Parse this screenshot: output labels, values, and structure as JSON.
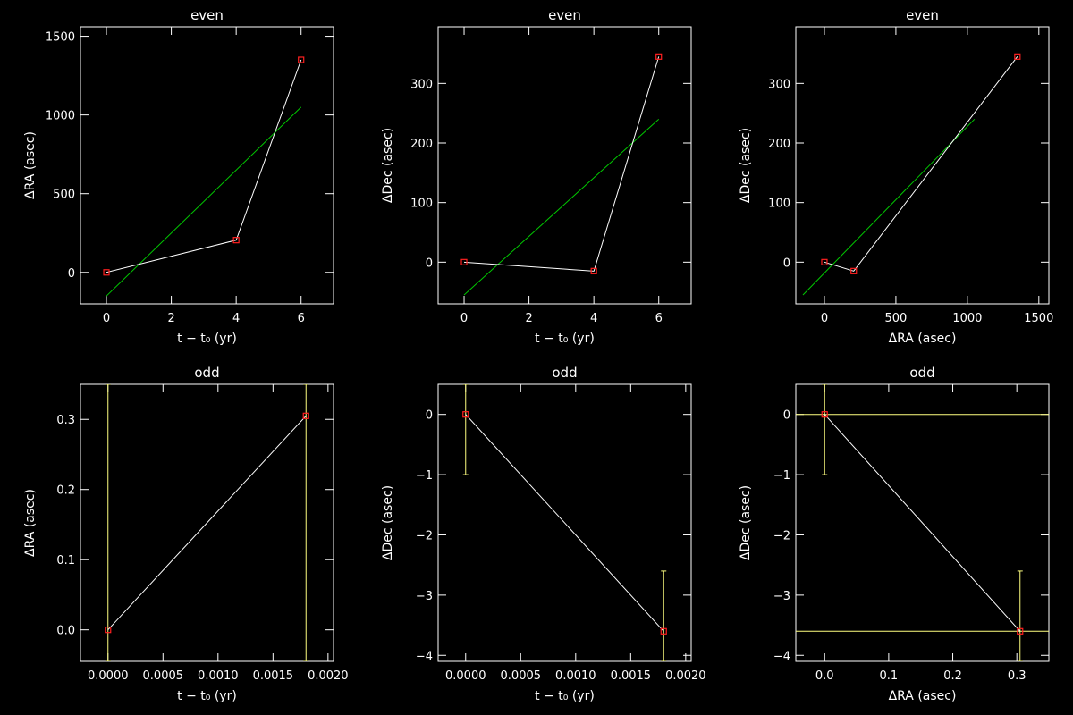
{
  "chart_data": [
    {
      "type": "line",
      "title": "even",
      "xlabel": "t − t₀ (yr)",
      "ylabel": "ΔRA (asec)",
      "xlim": [
        -0.8,
        7
      ],
      "ylim": [
        -200,
        1560
      ],
      "xticks": [
        0,
        2,
        4,
        6
      ],
      "xtick_labels": [
        "0",
        "2",
        "4",
        "6"
      ],
      "yticks": [
        0,
        500,
        1000,
        1500
      ],
      "ytick_labels": [
        "0",
        "500",
        "1000",
        "1500"
      ],
      "points": [
        [
          0,
          0
        ],
        [
          4,
          205
        ],
        [
          6,
          1350
        ]
      ],
      "fit": [
        [
          0,
          -150
        ],
        [
          6,
          1050
        ]
      ]
    },
    {
      "type": "line",
      "title": "even",
      "xlabel": "t − t₀ (yr)",
      "ylabel": "ΔDec (asec)",
      "xlim": [
        -0.8,
        7
      ],
      "ylim": [
        -70,
        395
      ],
      "xticks": [
        0,
        2,
        4,
        6
      ],
      "xtick_labels": [
        "0",
        "2",
        "4",
        "6"
      ],
      "yticks": [
        0,
        100,
        200,
        300
      ],
      "ytick_labels": [
        "0",
        "100",
        "200",
        "300"
      ],
      "points": [
        [
          0,
          0
        ],
        [
          4,
          -15
        ],
        [
          6,
          345
        ]
      ],
      "fit": [
        [
          0,
          -55
        ],
        [
          6,
          240
        ]
      ]
    },
    {
      "type": "line",
      "title": "even",
      "xlabel": "ΔRA (asec)",
      "ylabel": "ΔDec (asec)",
      "xlim": [
        -200,
        1570
      ],
      "ylim": [
        -70,
        395
      ],
      "xticks": [
        0,
        500,
        1000,
        1500
      ],
      "xtick_labels": [
        "0",
        "500",
        "1000",
        "1500"
      ],
      "yticks": [
        0,
        100,
        200,
        300
      ],
      "ytick_labels": [
        "0",
        "100",
        "200",
        "300"
      ],
      "points": [
        [
          0,
          0
        ],
        [
          205,
          -15
        ],
        [
          1350,
          345
        ]
      ],
      "fit": [
        [
          -150,
          -55
        ],
        [
          1050,
          240
        ]
      ]
    },
    {
      "type": "line",
      "title": "odd",
      "xlabel": "t − t₀ (yr)",
      "ylabel": "ΔRA (asec)",
      "xlim": [
        -0.00025,
        0.00205
      ],
      "ylim": [
        -0.045,
        0.35
      ],
      "xticks": [
        0,
        0.0005,
        0.001,
        0.0015,
        0.002
      ],
      "xtick_labels": [
        "0.0000",
        "0.0005",
        "0.0010",
        "0.0015",
        "0.0020"
      ],
      "yticks": [
        0,
        0.1,
        0.2,
        0.3
      ],
      "ytick_labels": [
        "0.0",
        "0.1",
        "0.2",
        "0.3"
      ],
      "points": [
        [
          0,
          0
        ],
        [
          0.0018,
          0.305
        ]
      ],
      "yerr": [
        {
          "x": 0,
          "lo": -0.045,
          "hi": 0.35
        },
        {
          "x": 0.0018,
          "lo": -0.045,
          "hi": 0.35
        }
      ]
    },
    {
      "type": "line",
      "title": "odd",
      "xlabel": "t − t₀ (yr)",
      "ylabel": "ΔDec (asec)",
      "xlim": [
        -0.00025,
        0.00205
      ],
      "ylim": [
        -4.1,
        0.5
      ],
      "xticks": [
        0,
        0.0005,
        0.001,
        0.0015,
        0.002
      ],
      "xtick_labels": [
        "0.0000",
        "0.0005",
        "0.0010",
        "0.0015",
        "0.0020"
      ],
      "yticks": [
        -4,
        -3,
        -2,
        -1,
        0
      ],
      "ytick_labels": [
        "−4",
        "−3",
        "−2",
        "−1",
        "0"
      ],
      "points": [
        [
          0,
          0
        ],
        [
          0.0018,
          -3.6
        ]
      ],
      "yerr": [
        {
          "x": 0,
          "lo": -1.0,
          "hi": 0.5
        },
        {
          "x": 0.0018,
          "lo": -4.1,
          "hi": -2.6
        }
      ]
    },
    {
      "type": "line",
      "title": "odd",
      "xlabel": "ΔRA (asec)",
      "ylabel": "ΔDec (asec)",
      "xlim": [
        -0.045,
        0.35
      ],
      "ylim": [
        -4.1,
        0.5
      ],
      "xticks": [
        0,
        0.1,
        0.2,
        0.3
      ],
      "xtick_labels": [
        "0.0",
        "0.1",
        "0.2",
        "0.3"
      ],
      "yticks": [
        -4,
        -3,
        -2,
        -1,
        0
      ],
      "ytick_labels": [
        "−4",
        "−3",
        "−2",
        "−1",
        "0"
      ],
      "points": [
        [
          0,
          0
        ],
        [
          0.305,
          -3.6
        ]
      ],
      "yerr": [
        {
          "x": 0,
          "lo": -1.0,
          "hi": 0.5
        },
        {
          "x": 0.305,
          "lo": -4.1,
          "hi": -2.6
        }
      ],
      "xerr": [
        {
          "y": 0,
          "lo": -0.045,
          "hi": 0.35
        },
        {
          "y": -3.6,
          "lo": -0.045,
          "hi": 0.35
        }
      ]
    }
  ],
  "colors": {
    "background": "#000000",
    "axes": "#ffffff",
    "connect": "#ffffff",
    "fit": "#00c800",
    "errorbar": "#ffff80",
    "marker": "#ff2020"
  }
}
